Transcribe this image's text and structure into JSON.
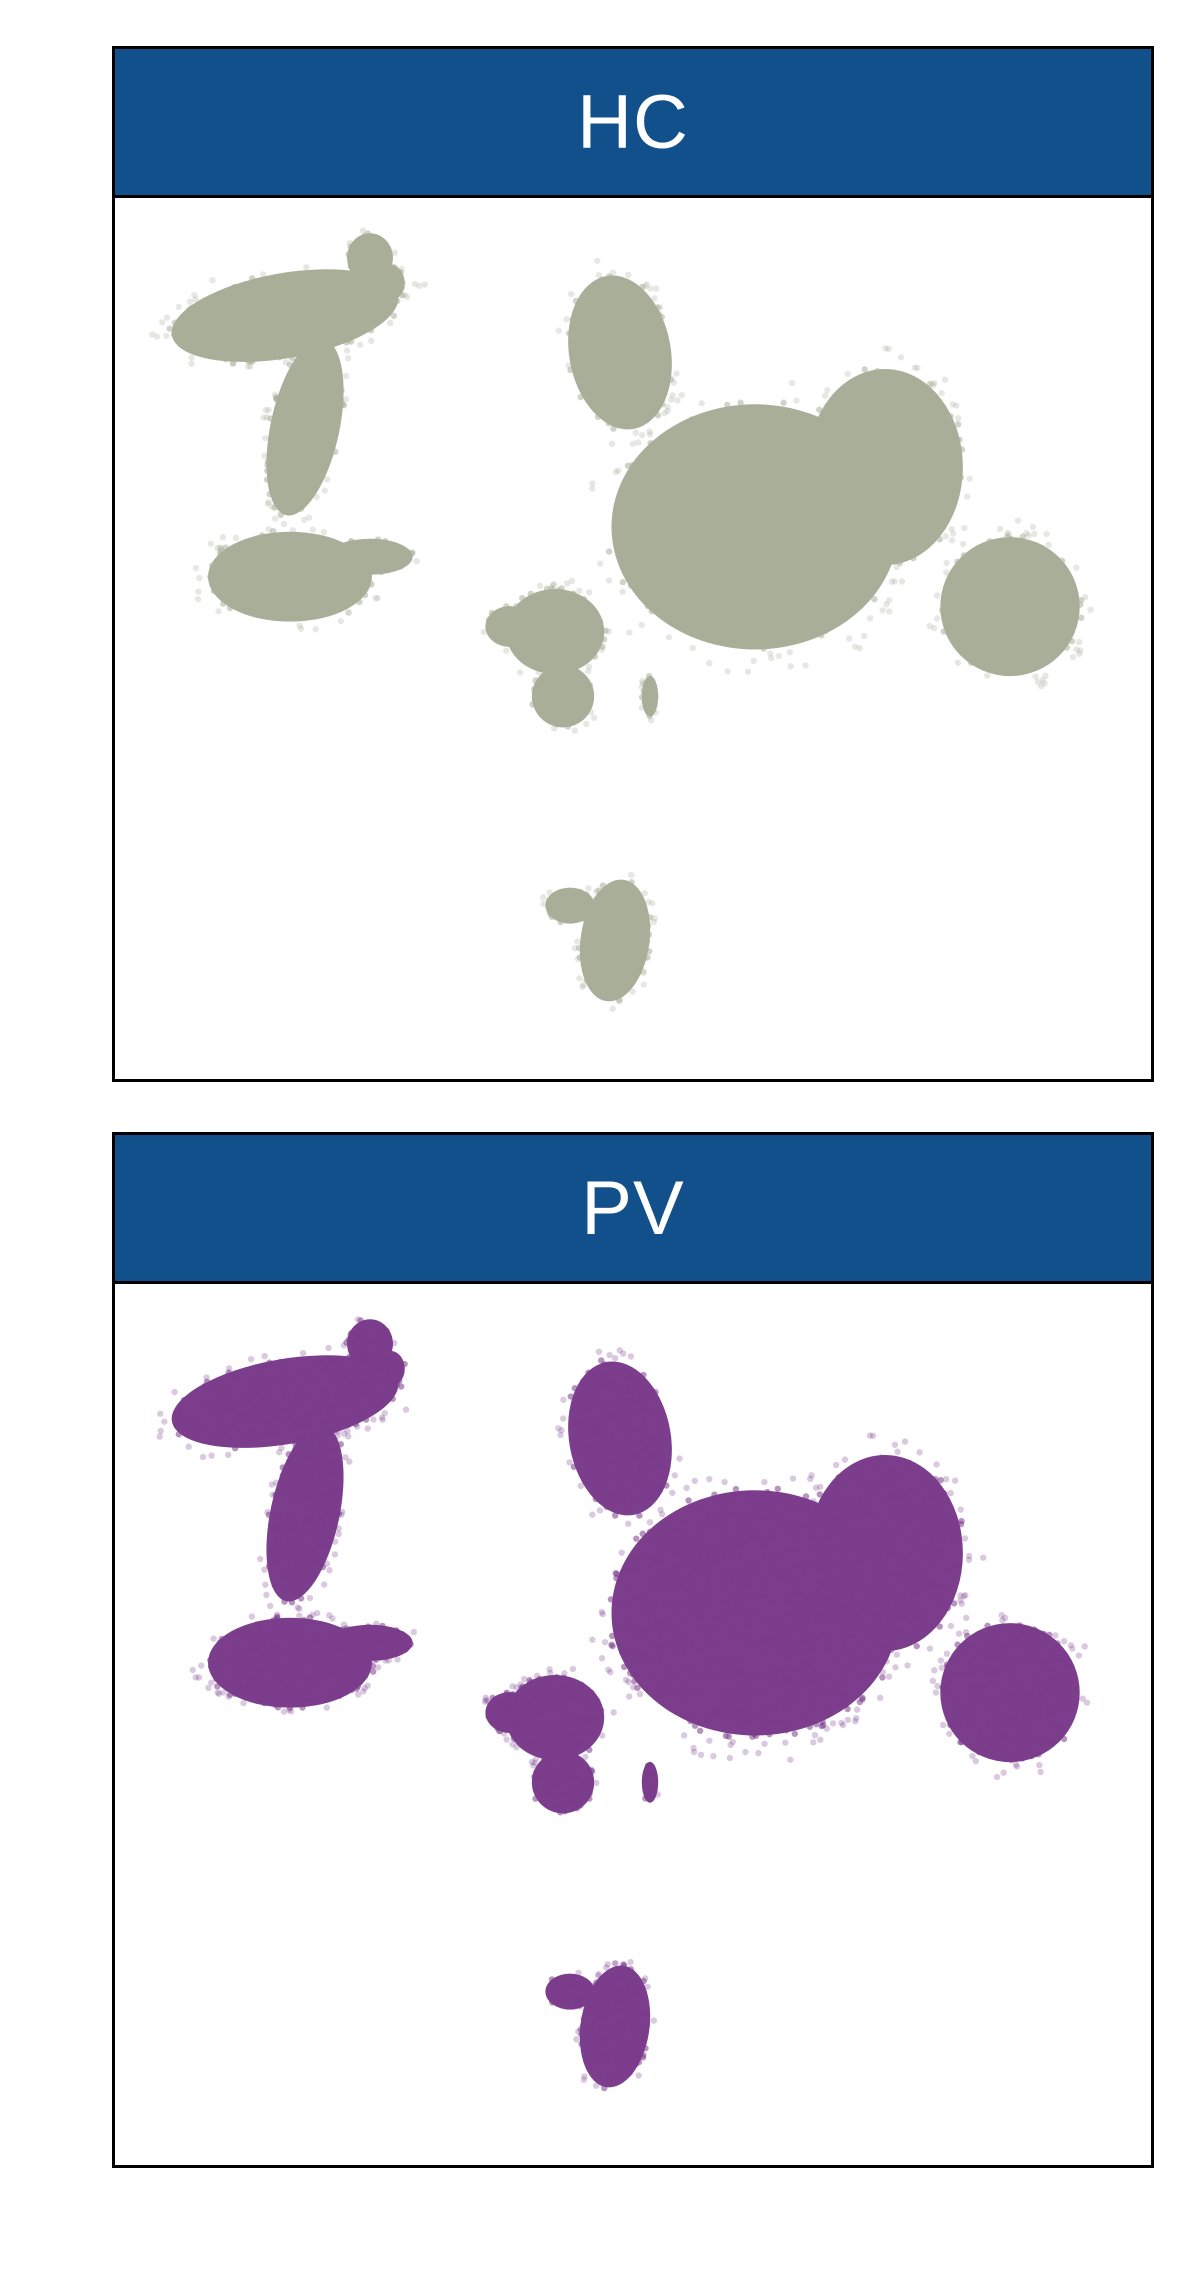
{
  "chart_data": {
    "type": "scatter",
    "facets": [
      {
        "label": "HC",
        "color": "#a9ae99",
        "dot_density": "medium"
      },
      {
        "label": "PV",
        "color": "#7b3d8c",
        "dot_density": "high"
      }
    ],
    "axes": "none",
    "grid": false,
    "legend": "none",
    "point_opacity": "semi-transparent",
    "header_color": "#12508c",
    "header_text_color": "#ffffff",
    "clusters": [
      {
        "name": "top-left",
        "approx_points": "many"
      },
      {
        "name": "right",
        "approx_points": "many"
      },
      {
        "name": "bottom",
        "approx_points": "many"
      }
    ]
  }
}
